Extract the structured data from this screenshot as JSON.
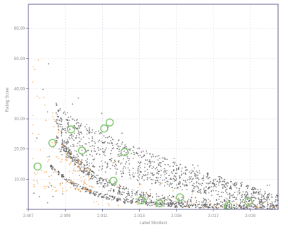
{
  "chart_data": {
    "type": "scatter",
    "title": "",
    "xlabel": "Label Shortest",
    "ylabel": "Rating Score",
    "x_tick_labels": [
      "2.007",
      "2.009",
      "2.011",
      "2.013",
      "2.015",
      "2.017",
      "2.019"
    ],
    "y_tick_labels": [
      "",
      "10.00",
      "20.00",
      "30.00",
      "40.00",
      "50.00",
      "60.00"
    ],
    "xlim": [
      2.007,
      2.0205
    ],
    "ylim": [
      0,
      68
    ],
    "grid": true,
    "legend": "none",
    "colors": {
      "main_series": "#5a5a5a",
      "accent_series": "#f4a247",
      "highlight_circles": "#7cc46b",
      "grid": "#d8d8e8",
      "axis": "#3a3a7a"
    },
    "series": [
      {
        "color": "#5a5a5a",
        "description_only_for_generation": null,
        "clusters": [
          {
            "kind": "curve",
            "x_start": 2.0082,
            "y_start": 14.5,
            "x_end": 2.0205,
            "y_end": 0.8,
            "decay": 2.6,
            "jitter_y": 0.7,
            "count": 420
          },
          {
            "kind": "curve",
            "x_start": 2.0088,
            "y_start": 22.0,
            "x_end": 2.0205,
            "y_end": 1.5,
            "decay": 2.4,
            "jitter_y": 1.6,
            "count": 520
          },
          {
            "kind": "cloud",
            "x_min": 2.0085,
            "x_max": 2.0205,
            "y_top_start": 36,
            "y_top_end": 5,
            "y_bottom_start": 20,
            "y_bottom_end": 1,
            "count": 900
          },
          {
            "kind": "sparse",
            "x_min": 2.0072,
            "x_max": 2.0202,
            "y_min": 2,
            "y_max": 60,
            "count": 110
          }
        ]
      },
      {
        "color": "#f4a247",
        "clusters": [
          {
            "kind": "sparse",
            "x_min": 2.0072,
            "x_max": 2.0105,
            "y_min": 6,
            "y_max": 64,
            "count": 140
          },
          {
            "kind": "sparse",
            "x_min": 2.0105,
            "x_max": 2.0205,
            "y_min": 0.5,
            "y_max": 20,
            "count": 60
          }
        ]
      }
    ],
    "highlight_points": [
      {
        "x": 2.0075,
        "y": 14.2
      },
      {
        "x": 2.0083,
        "y": 22.0
      },
      {
        "x": 2.0093,
        "y": 26.5
      },
      {
        "x": 2.0099,
        "y": 19.5
      },
      {
        "x": 2.0111,
        "y": 26.8
      },
      {
        "x": 2.0114,
        "y": 28.8
      },
      {
        "x": 2.0116,
        "y": 9.5
      },
      {
        "x": 2.0122,
        "y": 19.0
      },
      {
        "x": 2.0131,
        "y": 3.0
      },
      {
        "x": 2.0141,
        "y": 2.0
      },
      {
        "x": 2.0152,
        "y": 4.0
      },
      {
        "x": 2.0178,
        "y": 1.2
      },
      {
        "x": 2.0189,
        "y": 2.5
      }
    ]
  }
}
